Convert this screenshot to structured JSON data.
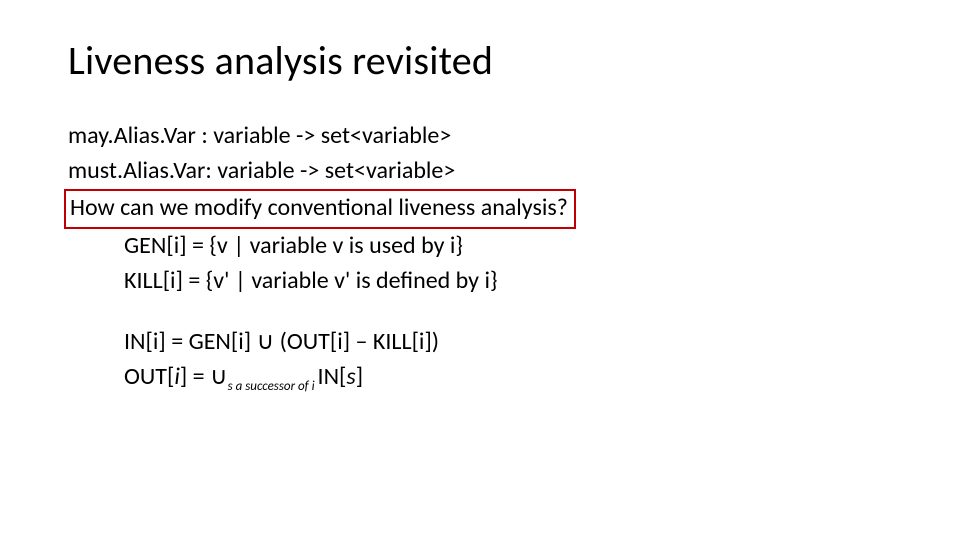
{
  "title": "Liveness analysis revisited",
  "lines": {
    "l1": "may.Alias.Var : variable -> set<variable>",
    "l2": "must.Alias.Var: variable -> set<variable>",
    "l3": "How can we modify conventional liveness analysis?",
    "l4": "GEN[i] = {v | variable v is used by i}",
    "l5": "KILL[i]  = {v' | variable v' is defined by i}",
    "l6a": "IN[i]     = GEN[i] ",
    "l6b": " (OUT[i] – KILL[i])",
    "l7a": "OUT[",
    "l7b": "i",
    "l7c": "] = ",
    "l7sub_s": "s",
    "l7sub_rest": " a successor of ",
    "l7sub_i": "i ",
    "l7d": "IN[",
    "l7e": "s",
    "l7f": "]"
  },
  "symbols": {
    "union": "∪"
  },
  "style": {
    "title_fontsize": 40,
    "body_fontsize": 24,
    "sub_fontsize": 13,
    "text_color": "#000000",
    "box_border_color": "#c00000",
    "box_border_width": 2.5,
    "background": "#ffffff",
    "font_family": "Calibri"
  }
}
